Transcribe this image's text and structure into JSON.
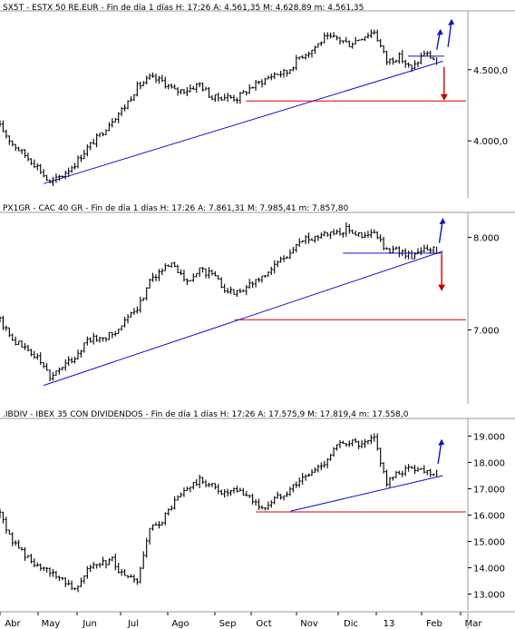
{
  "chart_data": [
    {
      "type": "line",
      "header": "SX5T - ESTX 50 RE.EUR - Fin de día 1 días H: 17:26  A: 4.561,35  M: 4.628,89  m: 4.561,35",
      "ylim": [
        3600,
        4900
      ],
      "yticks": [
        {
          "v": 4500,
          "label": "4.500,0"
        },
        {
          "v": 4000,
          "label": "4.000,0"
        }
      ],
      "series": [
        {
          "values": [
            4100,
            3980,
            3900,
            3820,
            3700,
            3760,
            3840,
            3950,
            4040,
            4150,
            4240,
            4380,
            4440,
            4420,
            4350,
            4360,
            4400,
            4300,
            4310,
            4300,
            4370,
            4420,
            4470,
            4480,
            4590,
            4640,
            4720,
            4720,
            4680,
            4730,
            4770,
            4560,
            4590,
            4500,
            4620,
            4560
          ]
        }
      ],
      "support": 4280,
      "lines": [
        {
          "kind": "trend",
          "color": "#1010cc",
          "x1": 3.5,
          "y1": 3700,
          "x2": 35.5,
          "y2": 4560
        },
        {
          "kind": "resistance",
          "color": "#1010cc",
          "x1": 32.7,
          "y1": 4595,
          "x2": 35.6,
          "y2": 4595
        }
      ],
      "arrows": [
        {
          "color": "#1010cc",
          "dir": "up",
          "x": 35.3,
          "y1": 4640,
          "y2": 4780
        },
        {
          "color": "#1010cc",
          "dir": "up",
          "x": 36.2,
          "y1": 4660,
          "y2": 4850
        },
        {
          "color": "#cc0000",
          "dir": "down",
          "x": 35.6,
          "y1": 4520,
          "y2": 4290
        }
      ]
    },
    {
      "type": "line",
      "header": "PX1GR - CAC 40 GR - Fin de día 1 días H: 17:26  A: 7.861,31  M: 7.985,41  m: 7.857,80",
      "ylim": [
        6200,
        8250
      ],
      "yticks": [
        {
          "v": 8000,
          "label": "8.000"
        },
        {
          "v": 7000,
          "label": "7.000"
        }
      ],
      "series": [
        {
          "values": [
            7100,
            6900,
            6800,
            6700,
            6500,
            6600,
            6700,
            6900,
            6900,
            6950,
            7100,
            7200,
            7550,
            7650,
            7700,
            7500,
            7650,
            7600,
            7450,
            7400,
            7500,
            7550,
            7700,
            7800,
            7950,
            8000,
            8050,
            8050,
            8100,
            8000,
            8050,
            7850,
            7850,
            7800,
            7900,
            7860
          ]
        }
      ],
      "support": 7110,
      "lines": [
        {
          "kind": "trend",
          "color": "#1010cc",
          "x1": 3.5,
          "y1": 6400,
          "x2": 35.5,
          "y2": 7850
        },
        {
          "kind": "resistance",
          "color": "#1010cc",
          "x1": 27.5,
          "y1": 7830,
          "x2": 35.5,
          "y2": 7830
        }
      ],
      "arrows": [
        {
          "color": "#1010cc",
          "dir": "up",
          "x": 35.5,
          "y1": 7940,
          "y2": 8200
        },
        {
          "color": "#cc0000",
          "dir": "down",
          "x": 35.4,
          "y1": 7820,
          "y2": 7430
        }
      ]
    },
    {
      "type": "line",
      "header": ".IBDIV - IBEX 35 CON DIVIDENDOS - Fin de día 1 días H: 17:26  A: 17.575,9  M: 17.819,4  m: 17.558,0",
      "ylim": [
        12400,
        19600
      ],
      "yticks": [
        {
          "v": 19000,
          "label": "19.000"
        },
        {
          "v": 18000,
          "label": "18.000"
        },
        {
          "v": 17000,
          "label": "17.000"
        },
        {
          "v": 16000,
          "label": "16.000"
        },
        {
          "v": 15000,
          "label": "15.000"
        },
        {
          "v": 14000,
          "label": "14.000"
        },
        {
          "v": 13000,
          "label": "13.000"
        }
      ],
      "series": [
        {
          "values": [
            16000,
            15000,
            14500,
            14000,
            13800,
            13600,
            13200,
            14000,
            14100,
            14300,
            13600,
            13500,
            15400,
            15800,
            16500,
            17000,
            17300,
            17100,
            16800,
            16900,
            16700,
            16200,
            16600,
            16900,
            17300,
            17600,
            18000,
            18600,
            18800,
            18600,
            18900,
            17200,
            17600,
            17800,
            17700,
            17576
          ]
        }
      ],
      "support": 16120,
      "lines": [
        {
          "kind": "trend",
          "color": "#1010cc",
          "x1": 23.3,
          "y1": 16150,
          "x2": 35.5,
          "y2": 17500
        }
      ],
      "arrows": [
        {
          "color": "#1010cc",
          "dir": "up",
          "x": 35.4,
          "y1": 17950,
          "y2": 18850
        }
      ]
    }
  ],
  "x_axis": {
    "labels": [
      "Abr",
      "May",
      "Jun",
      "Jul",
      "Ago",
      "Sep",
      "Oct",
      "Nov",
      "Dic",
      "13",
      "Feb",
      "Mar"
    ]
  },
  "colors": {
    "price": "#000000",
    "support": "#dd0000",
    "trend": "#1010cc",
    "frame": "#808080"
  }
}
